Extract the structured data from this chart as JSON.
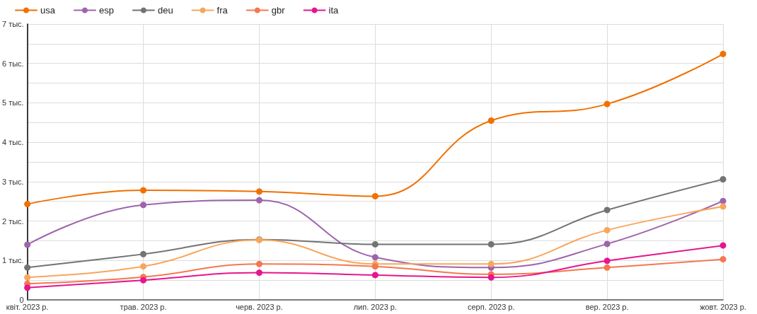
{
  "chart_data": {
    "type": "line",
    "categories": [
      "квіт. 2023 р.",
      "трав. 2023 р.",
      "черв. 2023 р.",
      "лип. 2023 р.",
      "серп. 2023 р.",
      "вер. 2023 р.",
      "жовт. 2023 р."
    ],
    "series": [
      {
        "name": "usa",
        "color": "#f07000",
        "values": [
          2.43,
          2.78,
          2.75,
          2.63,
          4.55,
          4.97,
          6.24
        ]
      },
      {
        "name": "esp",
        "color": "#9e64ac",
        "values": [
          1.4,
          2.41,
          2.53,
          1.08,
          0.82,
          1.42,
          2.51
        ]
      },
      {
        "name": "deu",
        "color": "#737373",
        "values": [
          0.82,
          1.16,
          1.53,
          1.41,
          1.41,
          2.28,
          3.06
        ]
      },
      {
        "name": "fra",
        "color": "#f8a65c",
        "values": [
          0.57,
          0.85,
          1.52,
          0.91,
          0.91,
          1.77,
          2.37
        ]
      },
      {
        "name": "gbr",
        "color": "#f5774f",
        "values": [
          0.41,
          0.58,
          0.91,
          0.85,
          0.65,
          0.82,
          1.03
        ]
      },
      {
        "name": "ita",
        "color": "#e7158f",
        "values": [
          0.31,
          0.5,
          0.69,
          0.63,
          0.57,
          0.99,
          1.38
        ]
      }
    ],
    "ylim": [
      0,
      7
    ],
    "yticks": [
      0,
      {
        "value": 0.5,
        "label": null
      },
      {
        "value": 1,
        "label": "1 тыс."
      },
      {
        "value": 1.5,
        "label": null
      },
      {
        "value": 2,
        "label": "2 тыс."
      },
      {
        "value": 2.5,
        "label": null
      },
      {
        "value": 3,
        "label": "3 тыс."
      },
      {
        "value": 3.5,
        "label": null
      },
      {
        "value": 4,
        "label": "4 тыс."
      },
      {
        "value": 4.5,
        "label": null
      },
      {
        "value": 5,
        "label": "5 тыс."
      },
      {
        "value": 5.5,
        "label": null
      },
      {
        "value": 6,
        "label": "6 тыс."
      },
      {
        "value": 6.5,
        "label": null
      },
      {
        "value": 7,
        "label": "7 тыс."
      }
    ],
    "grid": true,
    "legend": "top left",
    "marker": "circle",
    "line_style": "solid"
  }
}
